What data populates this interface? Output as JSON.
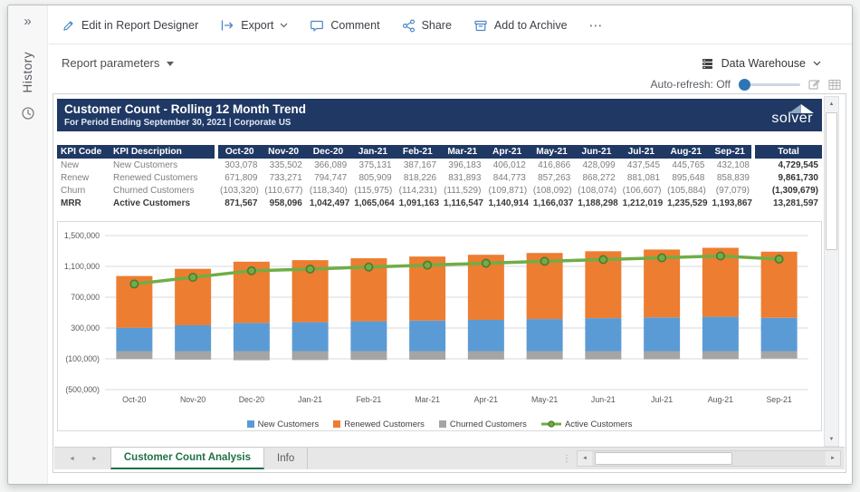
{
  "window": {
    "sidebar": {
      "collapse_glyph": "»",
      "history_label": "History"
    },
    "toolbar": {
      "edit": "Edit in Report Designer",
      "export": "Export",
      "comment": "Comment",
      "share": "Share",
      "archive": "Add to Archive",
      "more_glyph": "⋯"
    },
    "params": {
      "report_parameters": "Report parameters",
      "data_warehouse": "Data Warehouse",
      "auto_refresh": "Auto-refresh: Off"
    }
  },
  "report": {
    "title": "Customer Count - Rolling 12 Month Trend",
    "subtitle": "For Period Ending September 30, 2021 | Corporate US",
    "logo": "solver",
    "table": {
      "headers": [
        "KPI Code",
        "KPI Description",
        "Oct-20",
        "Nov-20",
        "Dec-20",
        "Jan-21",
        "Feb-21",
        "Mar-21",
        "Apr-21",
        "May-21",
        "Jun-21",
        "Jul-21",
        "Aug-21",
        "Sep-21",
        "Total"
      ],
      "rows": [
        {
          "code": "New",
          "desc": "New Customers",
          "values": [
            "303,078",
            "335,502",
            "366,089",
            "375,131",
            "387,167",
            "396,183",
            "406,012",
            "416,866",
            "428,099",
            "437,545",
            "445,765",
            "432,108"
          ],
          "total": "4,729,545",
          "bold": false
        },
        {
          "code": "Renew",
          "desc": "Renewed Customers",
          "values": [
            "671,809",
            "733,271",
            "794,747",
            "805,909",
            "818,226",
            "831,893",
            "844,773",
            "857,263",
            "868,272",
            "881,081",
            "895,648",
            "858,839"
          ],
          "total": "9,861,730",
          "bold": false
        },
        {
          "code": "Churn",
          "desc": "Churned Customers",
          "values": [
            "(103,320)",
            "(110,677)",
            "(118,340)",
            "(115,975)",
            "(114,231)",
            "(111,529)",
            "(109,871)",
            "(108,092)",
            "(108,074)",
            "(106,607)",
            "(105,884)",
            "(97,079)"
          ],
          "total": "(1,309,679)",
          "bold": false
        },
        {
          "code": "MRR",
          "desc": "Active Customers",
          "values": [
            "871,567",
            "958,096",
            "1,042,497",
            "1,065,064",
            "1,091,163",
            "1,116,547",
            "1,140,914",
            "1,166,037",
            "1,188,298",
            "1,212,019",
            "1,235,529",
            "1,193,867"
          ],
          "total": "13,281,597",
          "bold": true
        }
      ]
    }
  },
  "chart_data": {
    "type": "bar",
    "stacked": true,
    "title": "",
    "categories": [
      "Oct-20",
      "Nov-20",
      "Dec-20",
      "Jan-21",
      "Feb-21",
      "Mar-21",
      "Apr-21",
      "May-21",
      "Jun-21",
      "Jul-21",
      "Aug-21",
      "Sep-21"
    ],
    "series": [
      {
        "name": "New Customers",
        "kind": "bar",
        "color": "#5b9bd5",
        "values": [
          303078,
          335502,
          366089,
          375131,
          387167,
          396183,
          406012,
          416866,
          428099,
          437545,
          445765,
          432108
        ]
      },
      {
        "name": "Renewed Customers",
        "kind": "bar",
        "color": "#ed7d31",
        "values": [
          671809,
          733271,
          794747,
          805909,
          818226,
          831893,
          844773,
          857263,
          868272,
          881081,
          895648,
          858839
        ]
      },
      {
        "name": "Churned Customers",
        "kind": "bar",
        "color": "#a5a5a5",
        "values": [
          -103320,
          -110677,
          -118340,
          -115975,
          -114231,
          -111529,
          -109871,
          -108092,
          -108074,
          -106607,
          -105884,
          -97079
        ]
      },
      {
        "name": "Active Customers",
        "kind": "line",
        "color": "#70ad47",
        "marker_stroke": "#4e7a2e",
        "values": [
          871567,
          958096,
          1042497,
          1065064,
          1091163,
          1116547,
          1140914,
          1166037,
          1188298,
          1212019,
          1235529,
          1193867
        ]
      }
    ],
    "ylim": [
      -500000,
      1500000
    ],
    "ytick_step": 400000,
    "ytick_labels": [
      "(500,000)",
      "(100,000)",
      "300,000",
      "700,000",
      "1,100,000",
      "1,500,000"
    ],
    "grid": true,
    "legend_position": "bottom"
  },
  "tabs": {
    "prev_glyph": "◄",
    "next_glyph": "►",
    "active": "Customer Count Analysis",
    "inactive": "Info"
  },
  "scrollbar": {
    "up": "▲",
    "down": "▼",
    "left": "◄",
    "right": "►",
    "dots": "⋮"
  },
  "colors": {
    "accent_navy": "#1f3864",
    "tab_green": "#217346",
    "toolbar_blue": "#4a86c6",
    "slider_blue": "#2e75b6"
  }
}
